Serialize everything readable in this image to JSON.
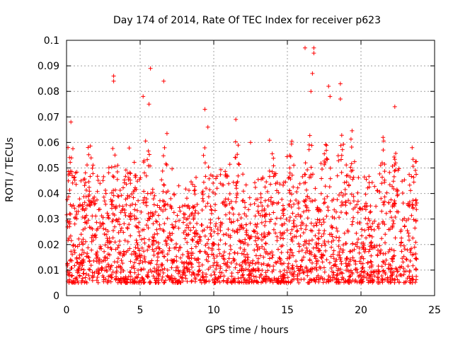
{
  "chart_data": {
    "type": "scatter",
    "title": "Day 174 of 2014, Rate Of TEC Index for receiver p623",
    "xlabel": "GPS time / hours",
    "ylabel": "ROTI / TECUs",
    "xlim": [
      0,
      25
    ],
    "ylim": [
      0,
      0.1
    ],
    "x_ticks": [
      0,
      5,
      10,
      15,
      20,
      25
    ],
    "x_tick_labels": [
      "0",
      "5",
      "10",
      "15",
      "20",
      "25"
    ],
    "y_ticks": [
      0,
      0.01,
      0.02,
      0.03,
      0.04,
      0.05,
      0.06,
      0.07,
      0.08,
      0.09,
      0.1
    ],
    "y_tick_labels": [
      "0",
      "0.01",
      "0.02",
      "0.03",
      "0.04",
      "0.05",
      "0.06",
      "0.07",
      "0.08",
      "0.09",
      "0.1"
    ],
    "grid": true,
    "marker": "+",
    "series_color": "#ff0000",
    "x_range_of_data": [
      0.0,
      23.8
    ],
    "typical_band": [
      0.005,
      0.035
    ],
    "notable_points": [
      {
        "x": 0.3,
        "y": 0.068
      },
      {
        "x": 3.2,
        "y": 0.086
      },
      {
        "x": 3.2,
        "y": 0.084
      },
      {
        "x": 5.2,
        "y": 0.078
      },
      {
        "x": 5.7,
        "y": 0.089
      },
      {
        "x": 5.6,
        "y": 0.075
      },
      {
        "x": 6.6,
        "y": 0.084
      },
      {
        "x": 9.4,
        "y": 0.073
      },
      {
        "x": 9.6,
        "y": 0.066
      },
      {
        "x": 11.5,
        "y": 0.069
      },
      {
        "x": 16.2,
        "y": 0.097
      },
      {
        "x": 16.8,
        "y": 0.097
      },
      {
        "x": 16.8,
        "y": 0.095
      },
      {
        "x": 16.7,
        "y": 0.087
      },
      {
        "x": 16.6,
        "y": 0.08
      },
      {
        "x": 17.8,
        "y": 0.082
      },
      {
        "x": 17.9,
        "y": 0.078
      },
      {
        "x": 18.6,
        "y": 0.083
      },
      {
        "x": 18.6,
        "y": 0.077
      },
      {
        "x": 22.3,
        "y": 0.074
      },
      {
        "x": 21.5,
        "y": 0.062
      },
      {
        "x": 12.5,
        "y": 0.06
      },
      {
        "x": 0.1,
        "y": 0.058
      }
    ]
  }
}
